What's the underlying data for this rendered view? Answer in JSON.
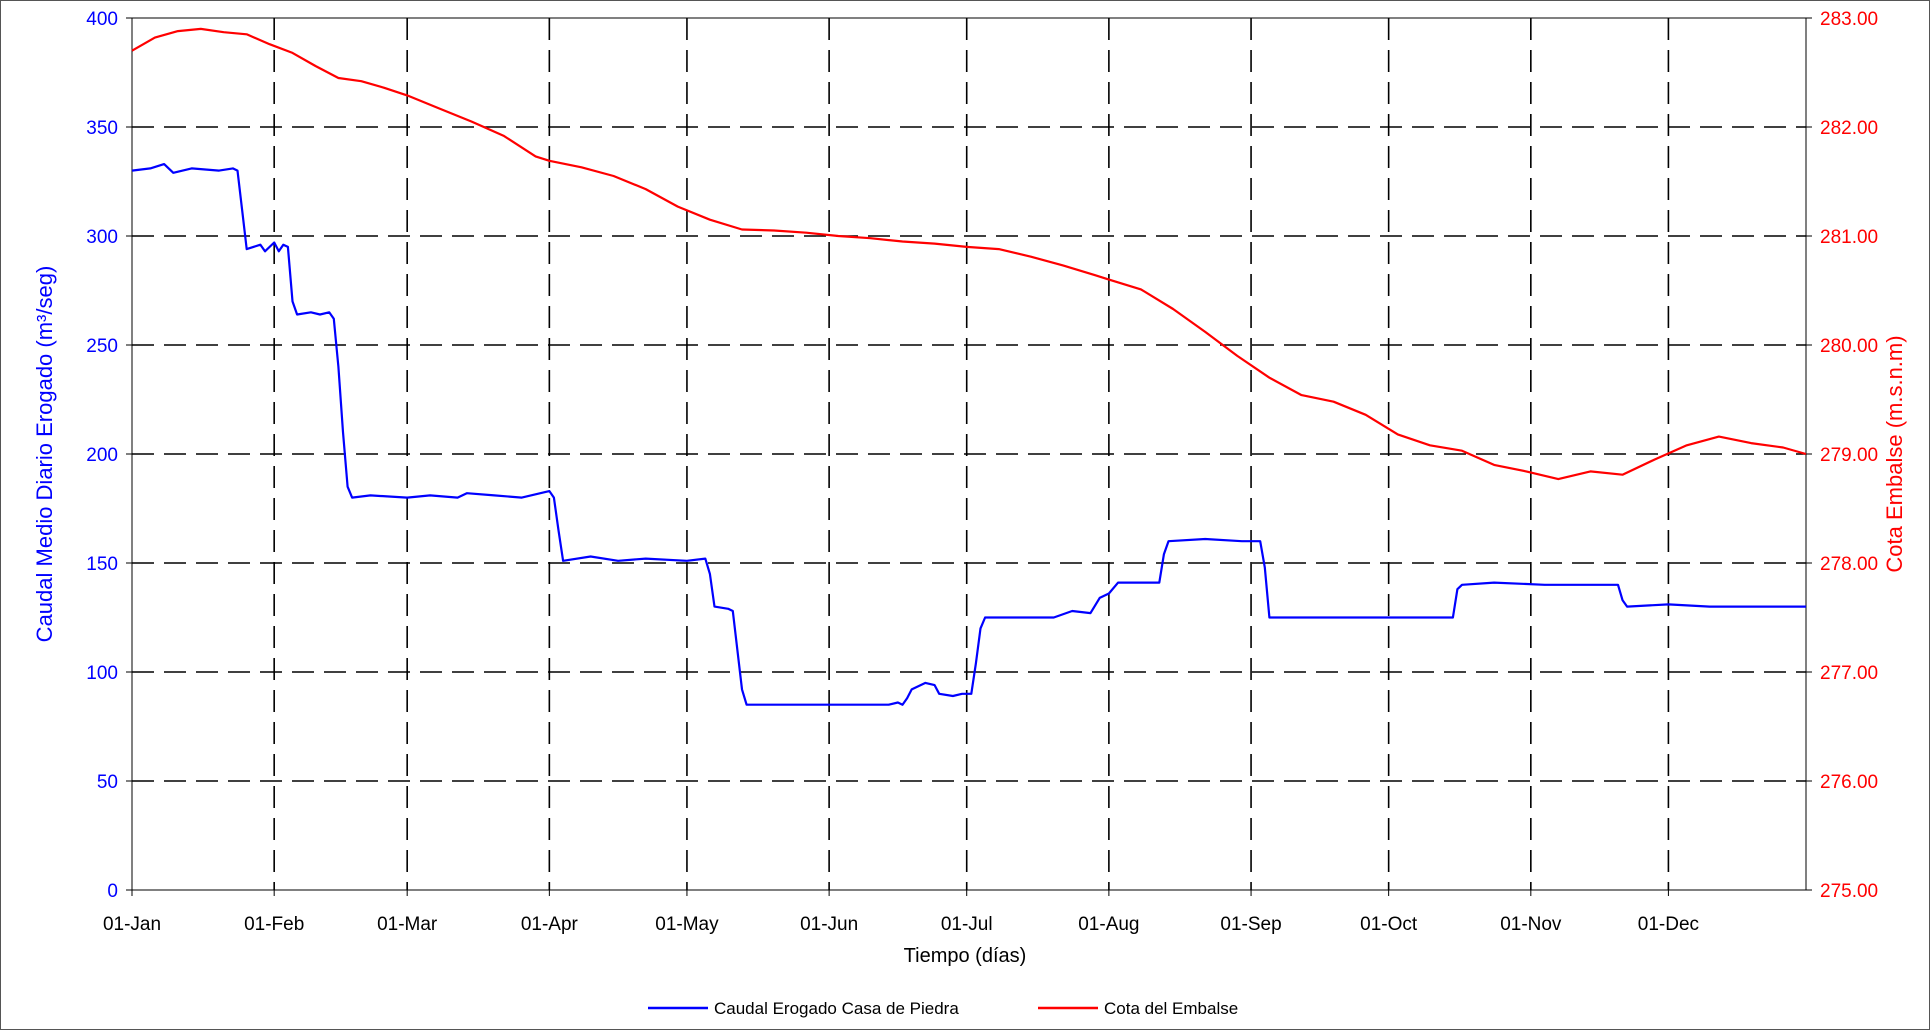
{
  "chart_data": {
    "type": "line",
    "x_axis": {
      "label": "Tiempo (días)",
      "type": "date",
      "range": [
        "2008-01-01",
        "2008-12-31"
      ],
      "ticks": [
        {
          "date": "2008-01-01",
          "label": "01-Jan"
        },
        {
          "date": "2008-02-01",
          "label": "01-Feb"
        },
        {
          "date": "2008-03-01",
          "label": "01-Mar"
        },
        {
          "date": "2008-04-01",
          "label": "01-Apr"
        },
        {
          "date": "2008-05-01",
          "label": "01-May"
        },
        {
          "date": "2008-06-01",
          "label": "01-Jun"
        },
        {
          "date": "2008-07-01",
          "label": "01-Jul"
        },
        {
          "date": "2008-08-01",
          "label": "01-Aug"
        },
        {
          "date": "2008-09-01",
          "label": "01-Sep"
        },
        {
          "date": "2008-10-01",
          "label": "01-Oct"
        },
        {
          "date": "2008-11-01",
          "label": "01-Nov"
        },
        {
          "date": "2008-12-01",
          "label": "01-Dec"
        }
      ]
    },
    "y_axis_left": {
      "label": "Caudal Medio Diario Erogado (m³/seg)",
      "range": [
        0,
        400
      ],
      "ticks": [
        0,
        50,
        100,
        150,
        200,
        250,
        300,
        350,
        400
      ],
      "tick_labels": [
        "0",
        "50",
        "100",
        "150",
        "200",
        "250",
        "300",
        "350",
        "400"
      ],
      "color": "#0000ff"
    },
    "y_axis_right": {
      "label": "Cota Embalse (m.s.n.m)",
      "range": [
        275,
        283
      ],
      "ticks": [
        275,
        276,
        277,
        278,
        279,
        280,
        281,
        282,
        283
      ],
      "tick_labels": [
        "275.00",
        "276.00",
        "277.00",
        "278.00",
        "279.00",
        "280.00",
        "281.00",
        "282.00",
        "283.00"
      ],
      "color": "#ff0000"
    },
    "grid": true,
    "legend": {
      "placement": "bottom-center"
    },
    "series": [
      {
        "name": "Caudal Erogado Casa de Piedra",
        "axis": "left",
        "color": "#0000ff",
        "points": [
          [
            "2008-01-01",
            330
          ],
          [
            "2008-01-05",
            331
          ],
          [
            "2008-01-08",
            333
          ],
          [
            "2008-01-10",
            329
          ],
          [
            "2008-01-14",
            331
          ],
          [
            "2008-01-20",
            330
          ],
          [
            "2008-01-23",
            331
          ],
          [
            "2008-01-24",
            330
          ],
          [
            "2008-01-25",
            312
          ],
          [
            "2008-01-26",
            294
          ],
          [
            "2008-01-29",
            296
          ],
          [
            "2008-01-30",
            293
          ],
          [
            "2008-02-01",
            297
          ],
          [
            "2008-02-02",
            293
          ],
          [
            "2008-02-03",
            296
          ],
          [
            "2008-02-04",
            295
          ],
          [
            "2008-02-05",
            270
          ],
          [
            "2008-02-06",
            264
          ],
          [
            "2008-02-09",
            265
          ],
          [
            "2008-02-11",
            264
          ],
          [
            "2008-02-13",
            265
          ],
          [
            "2008-02-14",
            262
          ],
          [
            "2008-02-15",
            240
          ],
          [
            "2008-02-16",
            210
          ],
          [
            "2008-02-17",
            185
          ],
          [
            "2008-02-18",
            180
          ],
          [
            "2008-02-22",
            181
          ],
          [
            "2008-03-01",
            180
          ],
          [
            "2008-03-06",
            181
          ],
          [
            "2008-03-12",
            180
          ],
          [
            "2008-03-14",
            182
          ],
          [
            "2008-03-20",
            181
          ],
          [
            "2008-03-26",
            180
          ],
          [
            "2008-04-01",
            183
          ],
          [
            "2008-04-02",
            180
          ],
          [
            "2008-04-03",
            165
          ],
          [
            "2008-04-04",
            151
          ],
          [
            "2008-04-10",
            153
          ],
          [
            "2008-04-16",
            151
          ],
          [
            "2008-04-22",
            152
          ],
          [
            "2008-05-01",
            151
          ],
          [
            "2008-05-05",
            152
          ],
          [
            "2008-05-06",
            145
          ],
          [
            "2008-05-07",
            130
          ],
          [
            "2008-05-10",
            129
          ],
          [
            "2008-05-11",
            128
          ],
          [
            "2008-05-12",
            110
          ],
          [
            "2008-05-13",
            92
          ],
          [
            "2008-05-14",
            85
          ],
          [
            "2008-05-24",
            85
          ],
          [
            "2008-06-04",
            85
          ],
          [
            "2008-06-14",
            85
          ],
          [
            "2008-06-16",
            86
          ],
          [
            "2008-06-17",
            85
          ],
          [
            "2008-06-18",
            88
          ],
          [
            "2008-06-19",
            92
          ],
          [
            "2008-06-22",
            95
          ],
          [
            "2008-06-24",
            94
          ],
          [
            "2008-06-25",
            90
          ],
          [
            "2008-06-28",
            89
          ],
          [
            "2008-06-30",
            90
          ],
          [
            "2008-07-02",
            90
          ],
          [
            "2008-07-03",
            104
          ],
          [
            "2008-07-04",
            120
          ],
          [
            "2008-07-05",
            125
          ],
          [
            "2008-07-12",
            125
          ],
          [
            "2008-07-20",
            125
          ],
          [
            "2008-07-24",
            128
          ],
          [
            "2008-07-28",
            127
          ],
          [
            "2008-07-30",
            134
          ],
          [
            "2008-08-01",
            136
          ],
          [
            "2008-08-03",
            141
          ],
          [
            "2008-08-12",
            141
          ],
          [
            "2008-08-13",
            154
          ],
          [
            "2008-08-14",
            160
          ],
          [
            "2008-08-22",
            161
          ],
          [
            "2008-08-30",
            160
          ],
          [
            "2008-09-03",
            160
          ],
          [
            "2008-09-04",
            148
          ],
          [
            "2008-09-05",
            125
          ],
          [
            "2008-09-15",
            125
          ],
          [
            "2008-09-25",
            125
          ],
          [
            "2008-10-05",
            125
          ],
          [
            "2008-10-12",
            125
          ],
          [
            "2008-10-15",
            125
          ],
          [
            "2008-10-16",
            138
          ],
          [
            "2008-10-17",
            140
          ],
          [
            "2008-10-24",
            141
          ],
          [
            "2008-11-04",
            140
          ],
          [
            "2008-11-14",
            140
          ],
          [
            "2008-11-20",
            140
          ],
          [
            "2008-11-21",
            133
          ],
          [
            "2008-11-22",
            130
          ],
          [
            "2008-12-01",
            131
          ],
          [
            "2008-12-10",
            130
          ],
          [
            "2008-12-20",
            130
          ],
          [
            "2008-12-31",
            130
          ]
        ]
      },
      {
        "name": "Cota del Embalse",
        "axis": "right",
        "color": "#ff0000",
        "points": [
          [
            "2008-01-01",
            282.7
          ],
          [
            "2008-01-06",
            282.82
          ],
          [
            "2008-01-11",
            282.88
          ],
          [
            "2008-01-16",
            282.9
          ],
          [
            "2008-01-21",
            282.87
          ],
          [
            "2008-01-26",
            282.85
          ],
          [
            "2008-01-31",
            282.76
          ],
          [
            "2008-02-05",
            282.68
          ],
          [
            "2008-02-10",
            282.56
          ],
          [
            "2008-02-15",
            282.45
          ],
          [
            "2008-02-20",
            282.42
          ],
          [
            "2008-02-25",
            282.36
          ],
          [
            "2008-03-01",
            282.29
          ],
          [
            "2008-03-08",
            282.17
          ],
          [
            "2008-03-15",
            282.05
          ],
          [
            "2008-03-22",
            281.92
          ],
          [
            "2008-03-29",
            281.73
          ],
          [
            "2008-04-01",
            281.69
          ],
          [
            "2008-04-08",
            281.63
          ],
          [
            "2008-04-15",
            281.55
          ],
          [
            "2008-04-22",
            281.43
          ],
          [
            "2008-04-29",
            281.27
          ],
          [
            "2008-05-06",
            281.15
          ],
          [
            "2008-05-13",
            281.06
          ],
          [
            "2008-05-20",
            281.05
          ],
          [
            "2008-05-27",
            281.03
          ],
          [
            "2008-06-03",
            281.0
          ],
          [
            "2008-06-10",
            280.98
          ],
          [
            "2008-06-17",
            280.95
          ],
          [
            "2008-06-24",
            280.93
          ],
          [
            "2008-07-01",
            280.9
          ],
          [
            "2008-07-08",
            280.88
          ],
          [
            "2008-07-15",
            280.81
          ],
          [
            "2008-07-22",
            280.73
          ],
          [
            "2008-07-29",
            280.64
          ],
          [
            "2008-08-01",
            280.6
          ],
          [
            "2008-08-08",
            280.51
          ],
          [
            "2008-08-15",
            280.33
          ],
          [
            "2008-08-22",
            280.12
          ],
          [
            "2008-08-29",
            279.9
          ],
          [
            "2008-09-05",
            279.7
          ],
          [
            "2008-09-12",
            279.54
          ],
          [
            "2008-09-19",
            279.48
          ],
          [
            "2008-09-26",
            279.36
          ],
          [
            "2008-10-03",
            279.18
          ],
          [
            "2008-10-10",
            279.08
          ],
          [
            "2008-10-17",
            279.03
          ],
          [
            "2008-10-24",
            278.9
          ],
          [
            "2008-10-31",
            278.84
          ],
          [
            "2008-11-07",
            278.77
          ],
          [
            "2008-11-14",
            278.84
          ],
          [
            "2008-11-21",
            278.81
          ],
          [
            "2008-11-28",
            278.95
          ],
          [
            "2008-12-05",
            279.08
          ],
          [
            "2008-12-12",
            279.16
          ],
          [
            "2008-12-19",
            279.1
          ],
          [
            "2008-12-26",
            279.06
          ],
          [
            "2008-12-31",
            279.0
          ]
        ]
      }
    ]
  }
}
